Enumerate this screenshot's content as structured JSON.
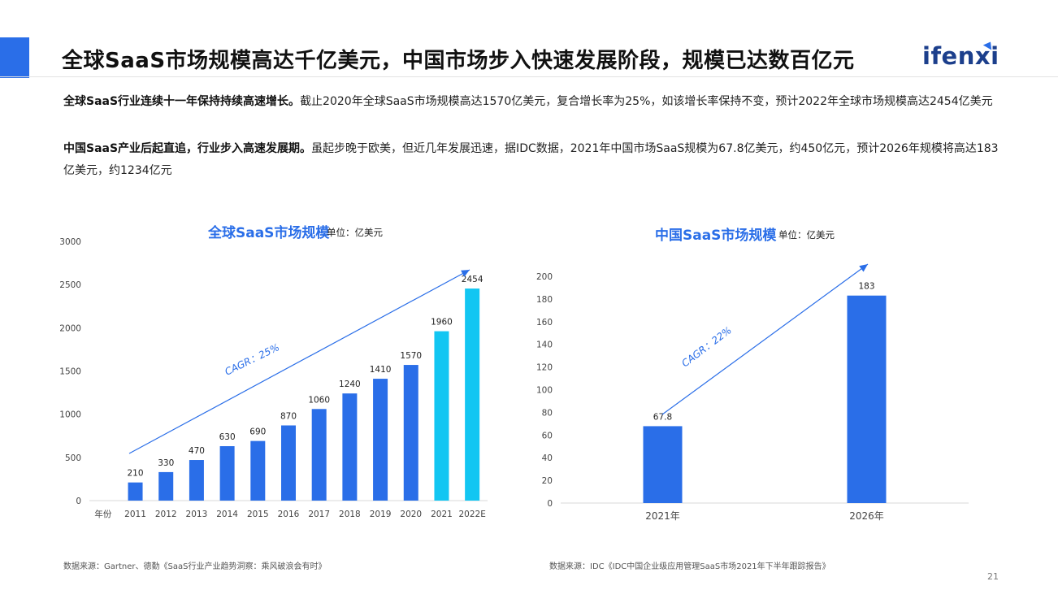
{
  "header": {
    "title": "全球SaaS市场规模高达千亿美元，中国市场步入快速发展阶段，规模已达数百亿元",
    "logo": "ifenxi",
    "accent_color": "#2a6ee8"
  },
  "paragraphs": [
    {
      "bold": "全球SaaS行业连续十一年保持持续高速增长。",
      "text": "截止2020年全球SaaS市场规模高达1570亿美元，复合增长率为25%，如该增长率保持不变，预计2022年全球市场规模高达2454亿美元"
    },
    {
      "bold": "中国SaaS产业后起直追，行业步入高速发展期。",
      "text": "虽起步晚于欧美，但近几年发展迅速，据IDC数据，2021年中国市场SaaS规模为67.8亿美元，约450亿元，预计2026年规模将高达183亿美元，约1234亿元"
    }
  ],
  "chart_data": [
    {
      "type": "bar",
      "title": "全球SaaS市场规模",
      "unit": "单位：亿美元",
      "xlabel": "年份",
      "categories": [
        "2011",
        "2012",
        "2013",
        "2014",
        "2015",
        "2016",
        "2017",
        "2018",
        "2019",
        "2020",
        "2021",
        "2022E"
      ],
      "values": [
        210,
        330,
        470,
        630,
        690,
        870,
        1060,
        1240,
        1410,
        1570,
        1960,
        2454
      ],
      "colors": [
        "#2a6ee8",
        "#2a6ee8",
        "#2a6ee8",
        "#2a6ee8",
        "#2a6ee8",
        "#2a6ee8",
        "#2a6ee8",
        "#2a6ee8",
        "#2a6ee8",
        "#2a6ee8",
        "#12c6f2",
        "#12c6f2"
      ],
      "ylim": [
        0,
        3000
      ],
      "yticks": [
        0,
        500,
        1000,
        1500,
        2000,
        2500,
        3000
      ],
      "annotation": "CAGR：25%",
      "grid": false,
      "source": "数据来源：Gartner、德勤《SaaS行业产业趋势洞察：乘风破浪会有时》"
    },
    {
      "type": "bar",
      "title": "中国SaaS市场规模",
      "unit": "单位：亿美元",
      "categories": [
        "2021年",
        "2026年"
      ],
      "values": [
        67.8,
        183
      ],
      "colors": [
        "#2a6ee8",
        "#2a6ee8"
      ],
      "ylim": [
        0,
        200
      ],
      "yticks": [
        0,
        20,
        40,
        60,
        80,
        100,
        120,
        140,
        160,
        180,
        200
      ],
      "annotation": "CAGR：22%",
      "grid": false,
      "source": "数据来源：IDC《IDC中国企业级应用管理SaaS市场2021年下半年跟踪报告》"
    }
  ],
  "page_number": "21"
}
